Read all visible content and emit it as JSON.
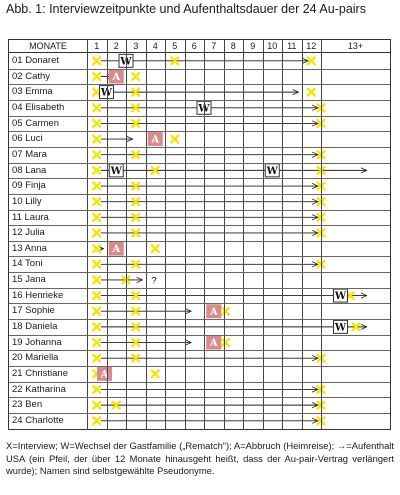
{
  "title": "Abb. 1: Interviewzeitpunkte und Aufenthaltsdauer der 24 Au-pairs",
  "header": {
    "label": "MONATE",
    "months": [
      "1",
      "2",
      "3",
      "4",
      "5",
      "6",
      "7",
      "8",
      "9",
      "10",
      "11",
      "12"
    ],
    "overflow": "13+"
  },
  "legend_symbols": {
    "interview": "X",
    "change": "W",
    "abort": "A",
    "unknown": "?"
  },
  "colors": {
    "interview": "#f3e600",
    "abort_fill": "#d98a8a",
    "line": "#222222"
  },
  "rows": [
    {
      "name": "01 Donaret",
      "stay": [
        1,
        12
      ],
      "interviews": [
        1,
        5,
        12
      ],
      "changes": [
        2.5
      ],
      "aborts": []
    },
    {
      "name": "02 Cathy",
      "stay": [
        1,
        2
      ],
      "interviews": [
        1,
        3
      ],
      "changes": [],
      "aborts": [
        2
      ]
    },
    {
      "name": "03 Emma",
      "stay": [
        1,
        11.5
      ],
      "interviews": [
        1,
        3,
        12
      ],
      "changes": [
        1.5
      ],
      "aborts": []
    },
    {
      "name": "04 Elisabeth",
      "stay": [
        1,
        12.5
      ],
      "interviews": [
        1,
        3,
        12.5
      ],
      "changes": [
        6.5
      ],
      "aborts": []
    },
    {
      "name": "05 Carmen",
      "stay": [
        1,
        12.5
      ],
      "interviews": [
        1,
        3,
        12.5
      ],
      "changes": [],
      "aborts": []
    },
    {
      "name": "06 Luci",
      "stay": [
        1,
        3
      ],
      "interviews": [
        1,
        5
      ],
      "changes": [],
      "aborts": [
        4
      ]
    },
    {
      "name": "07 Mara",
      "stay": [
        1,
        12.5
      ],
      "interviews": [
        1,
        3,
        12.5
      ],
      "changes": [],
      "aborts": []
    },
    {
      "name": "08 Lana",
      "stay": [
        1,
        15
      ],
      "interviews": [
        1,
        4,
        12.5
      ],
      "changes": [
        2,
        10
      ],
      "aborts": []
    },
    {
      "name": "09 Finja",
      "stay": [
        1,
        12.5
      ],
      "interviews": [
        1,
        3,
        12.5
      ],
      "changes": [],
      "aborts": []
    },
    {
      "name": "10 Lilly",
      "stay": [
        1,
        12.5
      ],
      "interviews": [
        1,
        3,
        12.5
      ],
      "changes": [],
      "aborts": []
    },
    {
      "name": "11 Laura",
      "stay": [
        1,
        12.5
      ],
      "interviews": [
        1,
        3,
        12.5
      ],
      "changes": [],
      "aborts": []
    },
    {
      "name": "12 Julia",
      "stay": [
        1,
        12.5
      ],
      "interviews": [
        1,
        3,
        12.5
      ],
      "changes": [],
      "aborts": []
    },
    {
      "name": "13 Anna",
      "stay": [
        1,
        1.5
      ],
      "interviews": [
        1,
        4
      ],
      "changes": [],
      "aborts": [
        2
      ]
    },
    {
      "name": "14 Toni",
      "stay": [
        1,
        12.5
      ],
      "interviews": [
        1,
        3,
        12.5
      ],
      "changes": [],
      "aborts": []
    },
    {
      "name": "15 Jana",
      "stay": [
        1,
        3.5
      ],
      "interviews": [
        1,
        2.5
      ],
      "changes": [],
      "aborts": [],
      "unknown_at": 3.7
    },
    {
      "name": "16 Henrieke",
      "stay": [
        1,
        15
      ],
      "interviews": [
        1,
        3,
        14
      ],
      "changes": [
        13.5
      ],
      "aborts": []
    },
    {
      "name": "17 Sophie",
      "stay": [
        1,
        6
      ],
      "interviews": [
        1,
        3,
        7.6
      ],
      "changes": [],
      "aborts": [
        7
      ]
    },
    {
      "name": "18 Daniela",
      "stay": [
        1,
        15
      ],
      "interviews": [
        1,
        3,
        14.3
      ],
      "changes": [
        13.5
      ],
      "aborts": []
    },
    {
      "name": "19 Johanna",
      "stay": [
        1,
        6
      ],
      "interviews": [
        1,
        3,
        7.6
      ],
      "changes": [],
      "aborts": [
        7
      ]
    },
    {
      "name": "20 Mariella",
      "stay": [
        1,
        12.5
      ],
      "interviews": [
        1,
        3,
        12.5
      ],
      "changes": [],
      "aborts": []
    },
    {
      "name": "21 Christiane",
      "stay": [
        1,
        1
      ],
      "interviews": [
        1,
        4
      ],
      "changes": [],
      "aborts": [
        1.4
      ]
    },
    {
      "name": "22 Katharina",
      "stay": [
        1,
        12.5
      ],
      "interviews": [
        1,
        12.5
      ],
      "changes": [],
      "aborts": []
    },
    {
      "name": "23 Ben",
      "stay": [
        1,
        12.5
      ],
      "interviews": [
        1,
        2,
        12.5
      ],
      "changes": [],
      "aborts": []
    },
    {
      "name": "24 Charlotte",
      "stay": [
        1,
        12.5
      ],
      "interviews": [
        1,
        12.5
      ],
      "changes": [],
      "aborts": []
    }
  ],
  "caption": "X=Interview; W=Wechsel der Gastfamilie („Rematch“); A=Abbruch (Heimreise); →=Aufenthalt USA (ein Pfeil, der über 12 Monate hinausgeht heißt, dass der Au-pair-Vertrag verlängert wurde); Namen sind selbstgewählte Pseudonyme."
}
